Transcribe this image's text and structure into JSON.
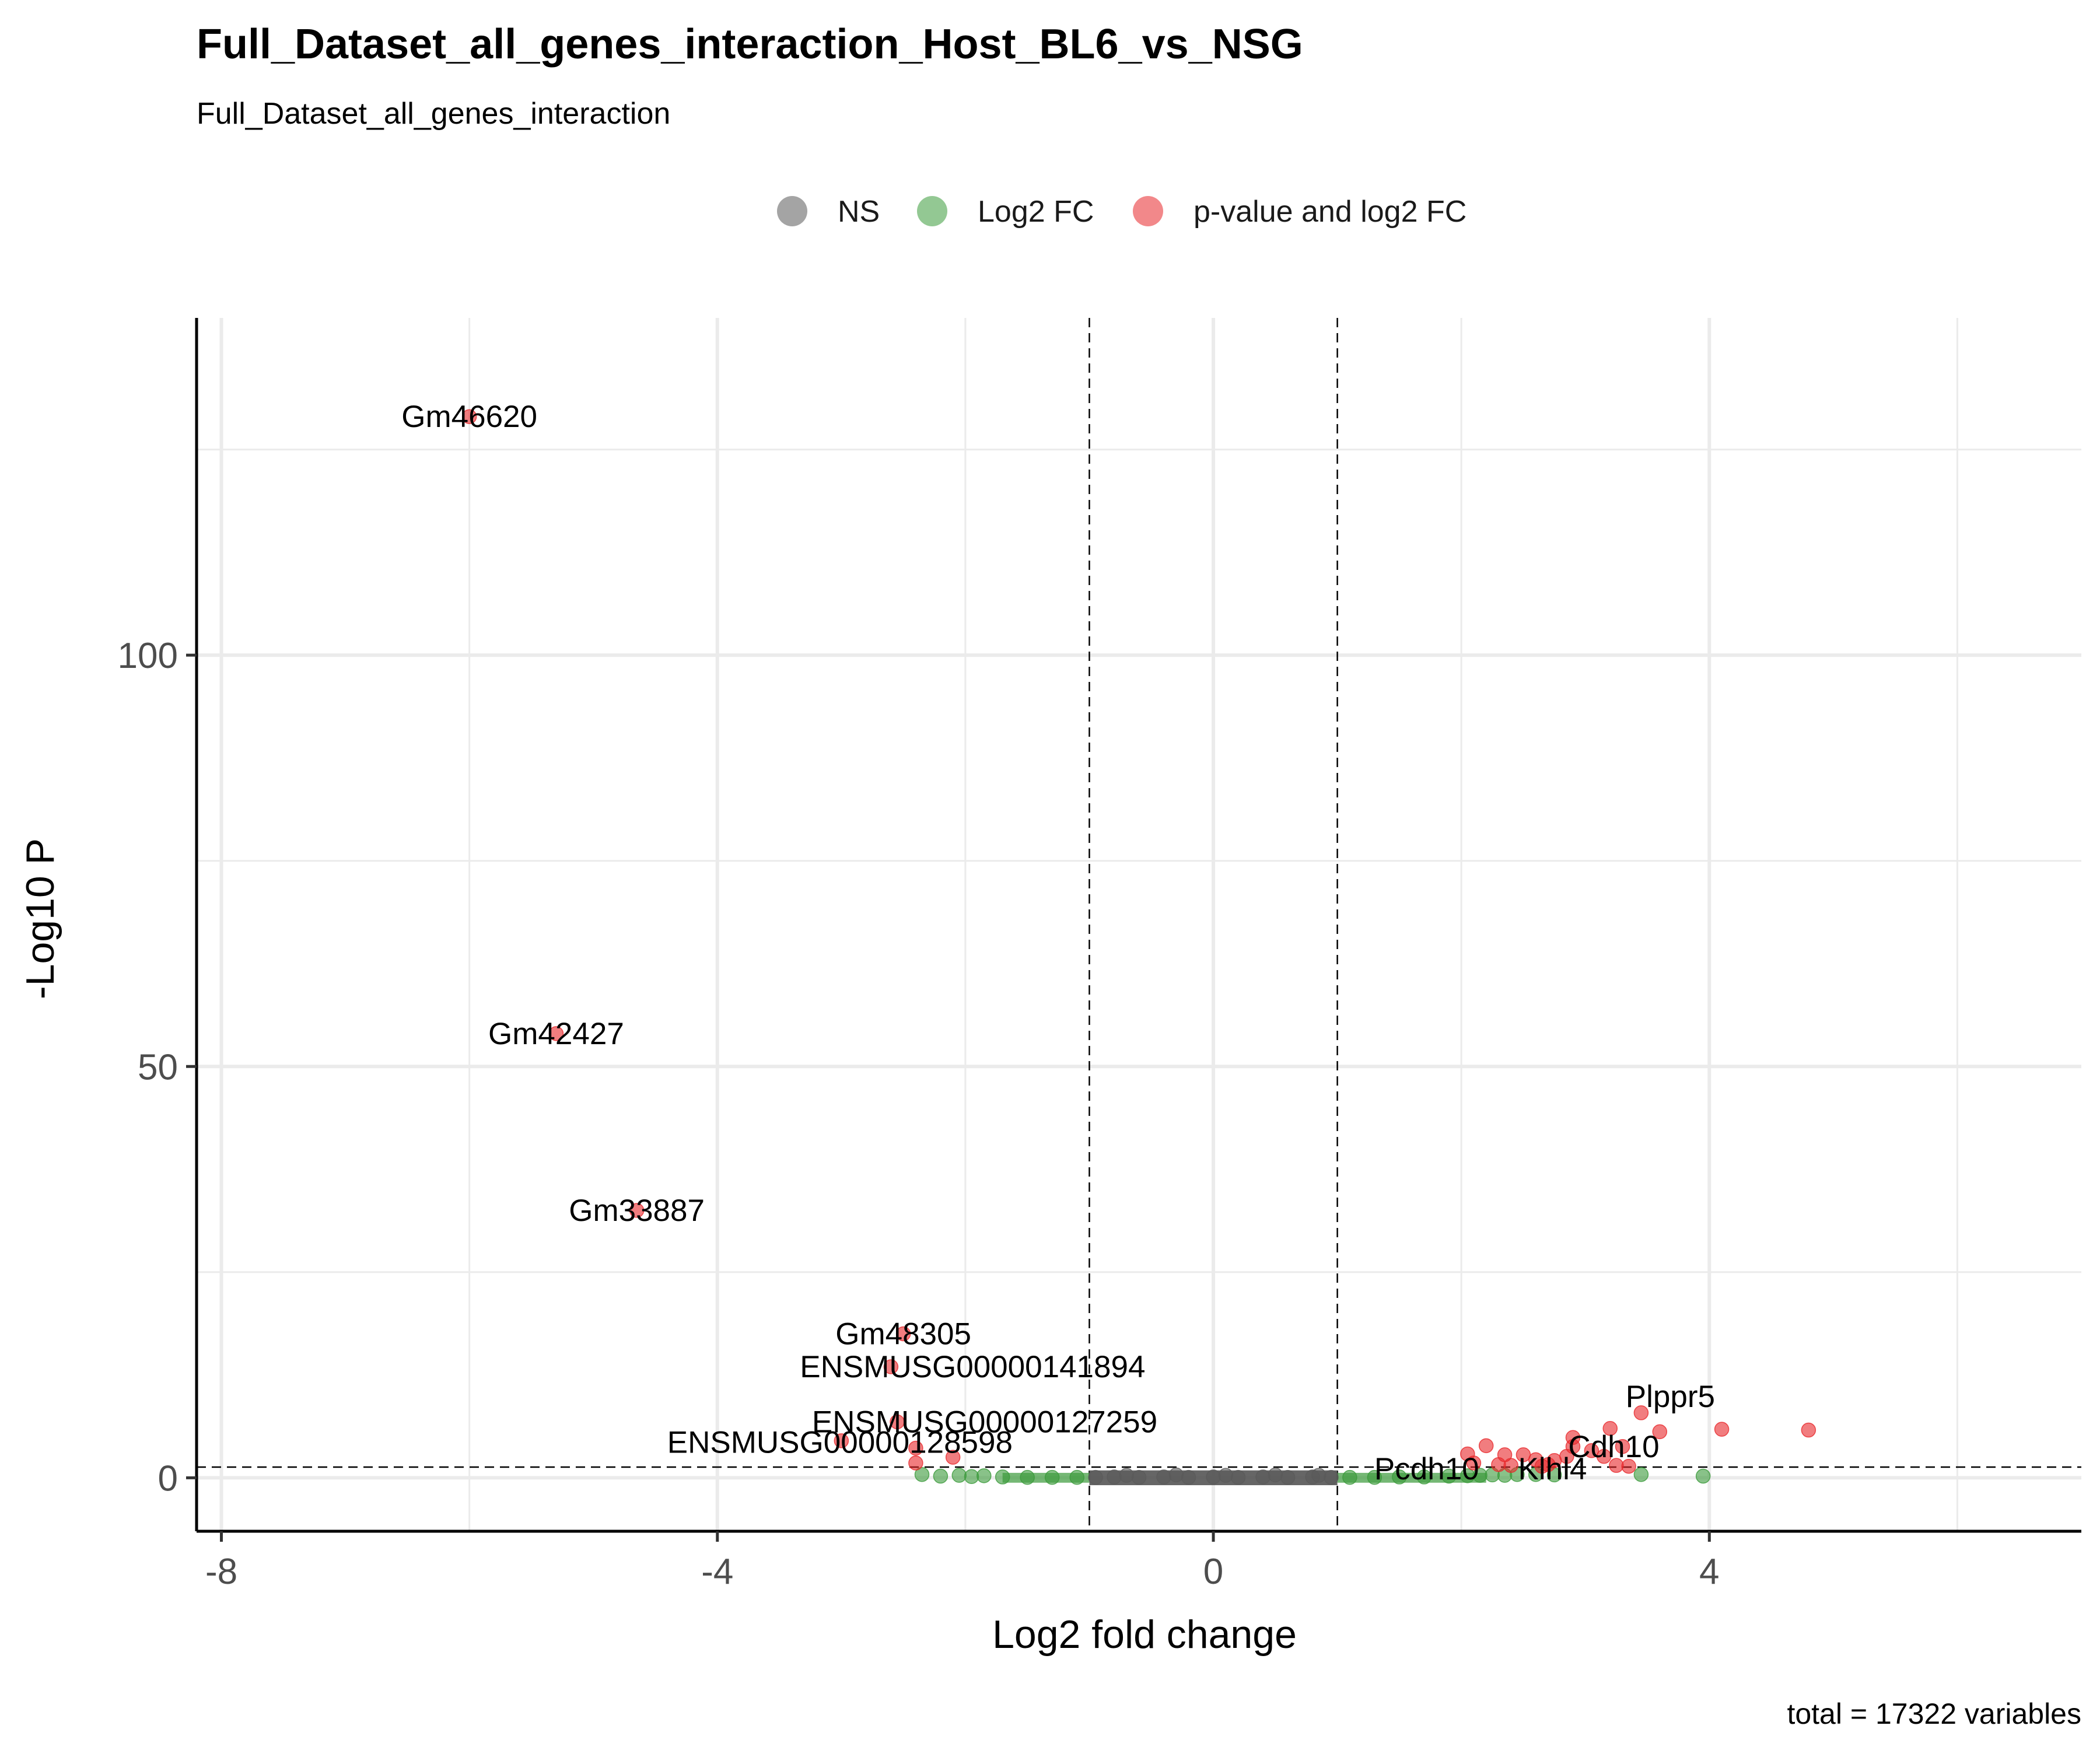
{
  "chart_data": {
    "type": "scatter",
    "title": "Full_Dataset_all_genes_interaction_Host_BL6_vs_NSG",
    "subtitle": "Full_Dataset_all_genes_interaction",
    "xlabel": "Log2 fold change",
    "ylabel": "-Log10 P",
    "caption": "total = 17322 variables",
    "xlim": [
      -8.2,
      7
    ],
    "ylim": [
      -6.5,
      141
    ],
    "x_ticks": [
      -8,
      -4,
      0,
      4
    ],
    "y_ticks": [
      0,
      50,
      100
    ],
    "x_tick_labels": [
      "-8",
      "-4",
      "0",
      "4"
    ],
    "y_tick_labels": [
      "0",
      "50",
      "100"
    ],
    "grid": true,
    "legend_position": "top",
    "fc_cutoff": [
      -1,
      1
    ],
    "p_cutoff": 1.3,
    "series": [
      {
        "name": "NS",
        "color": "#5a5a5a",
        "points": [
          [
            -0.95,
            0.05
          ],
          [
            -0.8,
            0.1
          ],
          [
            -0.6,
            0.05
          ],
          [
            -0.4,
            0.1
          ],
          [
            -0.2,
            0.05
          ],
          [
            0,
            0.1
          ],
          [
            0.2,
            0.05
          ],
          [
            0.4,
            0.1
          ],
          [
            0.6,
            0.05
          ],
          [
            0.8,
            0.1
          ],
          [
            0.95,
            0.05
          ],
          [
            -0.7,
            0.3
          ],
          [
            -0.3,
            0.35
          ],
          [
            0.1,
            0.3
          ],
          [
            0.5,
            0.35
          ],
          [
            0.85,
            0.3
          ]
        ]
      },
      {
        "name": "Log2 FC",
        "color": "#3a9a3a",
        "points": [
          [
            -2.35,
            0.4
          ],
          [
            -2.2,
            0.2
          ],
          [
            -2.05,
            0.3
          ],
          [
            -1.95,
            0.15
          ],
          [
            -1.85,
            0.25
          ],
          [
            -1.7,
            0.1
          ],
          [
            -1.5,
            0.05
          ],
          [
            -1.3,
            0.05
          ],
          [
            -1.1,
            0.05
          ],
          [
            1.1,
            0.05
          ],
          [
            1.3,
            0.05
          ],
          [
            1.5,
            0.1
          ],
          [
            1.7,
            0.1
          ],
          [
            1.9,
            0.2
          ],
          [
            2.05,
            0.25
          ],
          [
            2.15,
            0.3
          ],
          [
            2.25,
            0.35
          ],
          [
            2.35,
            0.3
          ],
          [
            2.45,
            0.4
          ],
          [
            2.6,
            0.4
          ],
          [
            2.75,
            0.35
          ],
          [
            3.45,
            0.4
          ],
          [
            3.95,
            0.2
          ]
        ]
      },
      {
        "name": "p-value and log2 FC",
        "color": "#e8272a",
        "points": [
          [
            -6.0,
            129
          ],
          [
            -5.3,
            54
          ],
          [
            -4.65,
            32.5
          ],
          [
            -2.5,
            17.5
          ],
          [
            -2.6,
            13.5
          ],
          [
            -2.55,
            6.8
          ],
          [
            -2.4,
            3.6
          ],
          [
            -2.1,
            2.5
          ],
          [
            -2.4,
            1.8
          ],
          [
            -3.0,
            4.5
          ],
          [
            3.45,
            7.9
          ],
          [
            3.2,
            6.0
          ],
          [
            3.6,
            5.6
          ],
          [
            4.1,
            5.9
          ],
          [
            4.8,
            5.8
          ],
          [
            2.9,
            4.9
          ],
          [
            2.9,
            3.8
          ],
          [
            3.3,
            3.8
          ],
          [
            3.05,
            3.3
          ],
          [
            3.15,
            2.6
          ],
          [
            2.2,
            3.9
          ],
          [
            2.05,
            2.9
          ],
          [
            2.35,
            2.8
          ],
          [
            2.5,
            2.8
          ],
          [
            2.6,
            2.2
          ],
          [
            2.75,
            2.1
          ],
          [
            2.85,
            2.6
          ],
          [
            2.1,
            1.8
          ],
          [
            2.3,
            1.6
          ],
          [
            3.25,
            1.5
          ],
          [
            3.35,
            1.4
          ],
          [
            2.4,
            1.5
          ],
          [
            2.65,
            1.4
          ],
          [
            2.7,
            1.6
          ]
        ]
      }
    ],
    "annotations": [
      {
        "label": "Gm46620",
        "x": -6.0,
        "y": 129
      },
      {
        "label": "Gm42427",
        "x": -5.3,
        "y": 54
      },
      {
        "label": "Gm33887",
        "x": -4.65,
        "y": 32.5
      },
      {
        "label": "Gm48305",
        "x": -2.5,
        "y": 17.5
      },
      {
        "label": "ENSMUSG00000141894",
        "x": -2.6,
        "y": 13.5
      },
      {
        "label": "ENSMUSG00000127259",
        "x": -2.55,
        "y": 6.8
      },
      {
        "label": "ENSMUSG00000128598",
        "x": -2.4,
        "y": 3.6
      },
      {
        "label": "Plppr5",
        "x": 3.45,
        "y": 7.9
      },
      {
        "label": "Cdh10",
        "x": 2.9,
        "y": 3.8
      },
      {
        "label": "Pcdh10",
        "x": 2.05,
        "y": 1.8
      },
      {
        "label": "Klhl4",
        "x": 2.5,
        "y": 1.8
      }
    ]
  }
}
